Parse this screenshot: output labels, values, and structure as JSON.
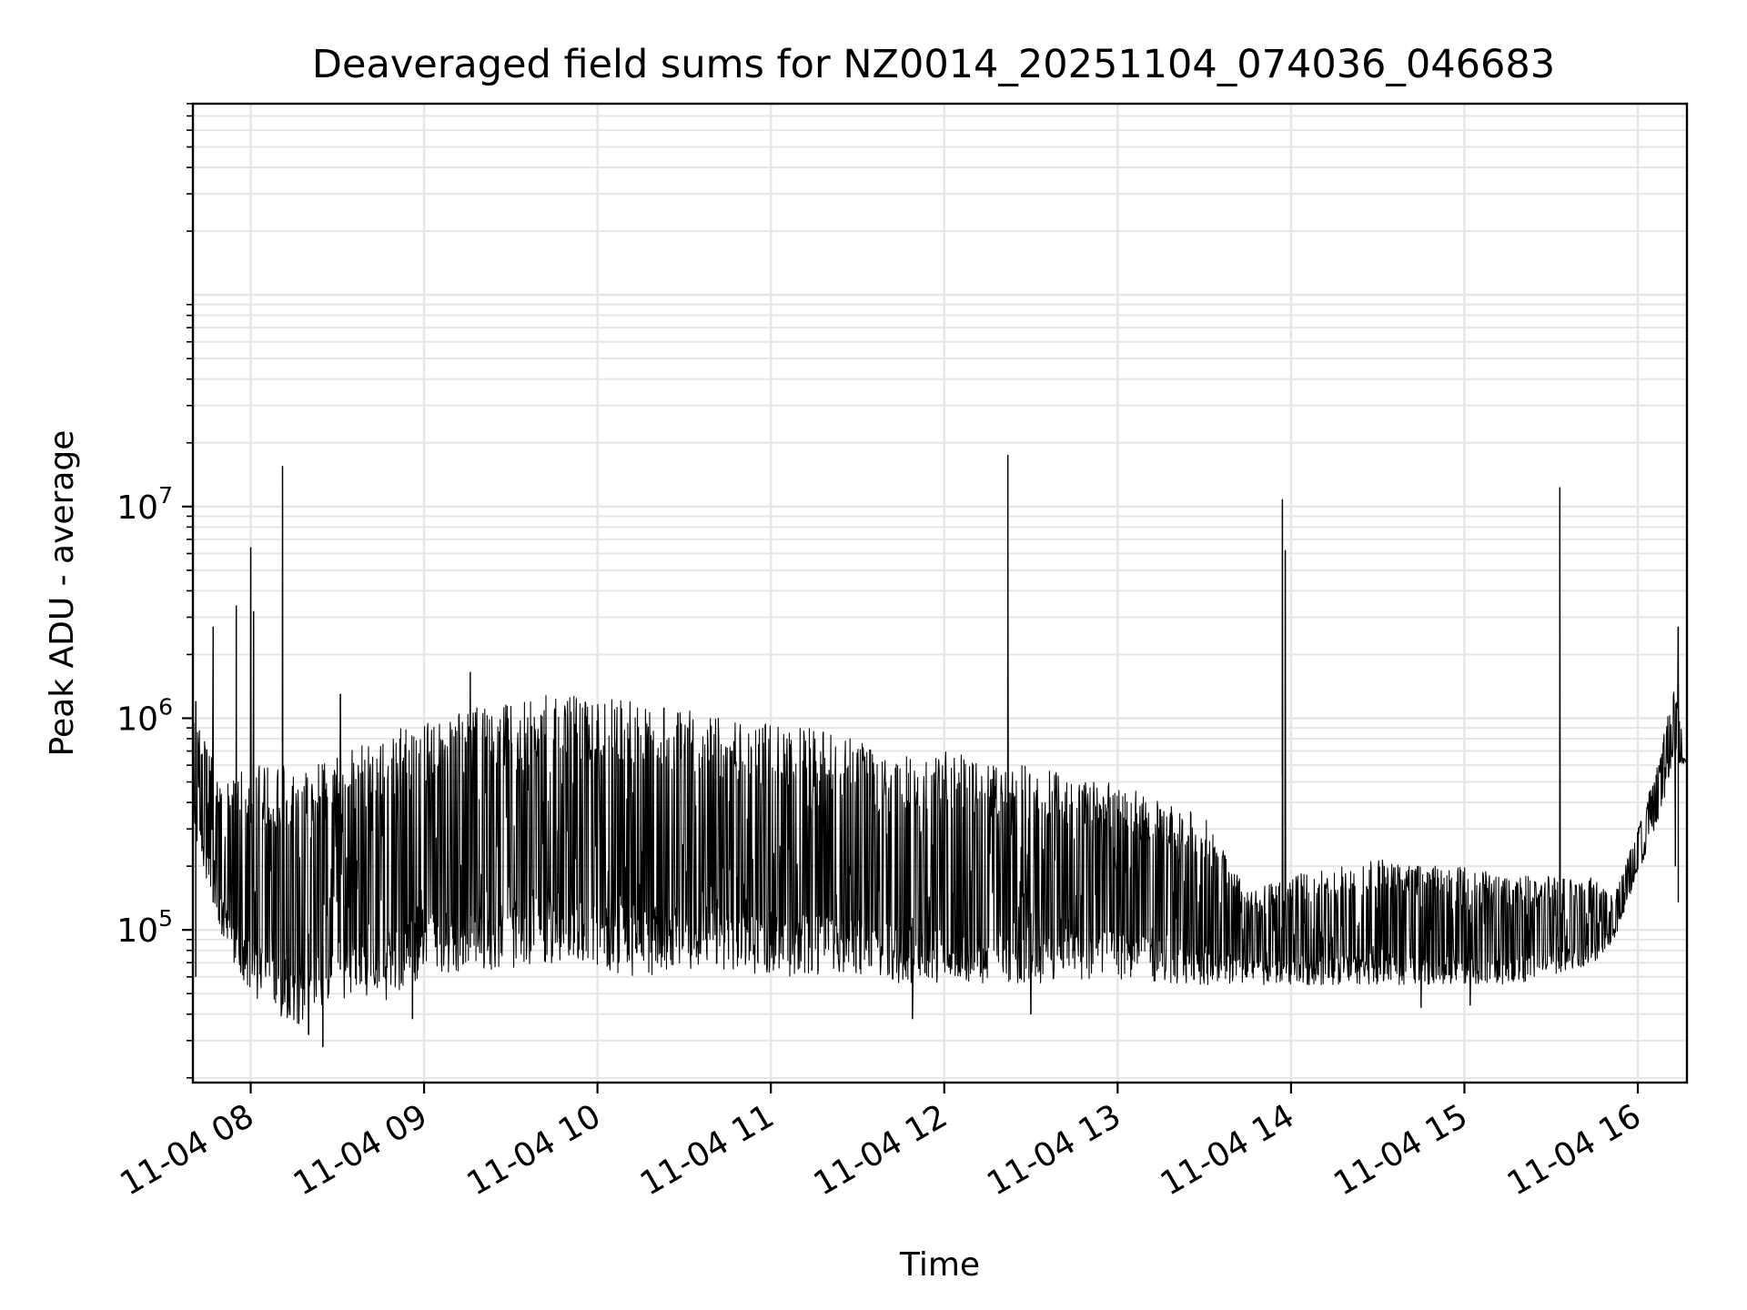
{
  "chart_data": {
    "type": "line",
    "title": "Deaveraged field sums for NZ0014_20251104_074036_046683",
    "xlabel": "Time",
    "ylabel": "Peak ADU - average",
    "yscale": "log",
    "ylim": [
      19000,
      800000000
    ],
    "xlim": [
      "2025-11-04 07:40",
      "2025-11-04 16:17"
    ],
    "grid": true,
    "line_color": "#000000",
    "grid_color": "#e6e6e6",
    "x_ticks": [
      {
        "t": "2025-11-04 08:00",
        "label": "11-04 08"
      },
      {
        "t": "2025-11-04 09:00",
        "label": "11-04 09"
      },
      {
        "t": "2025-11-04 10:00",
        "label": "11-04 10"
      },
      {
        "t": "2025-11-04 11:00",
        "label": "11-04 11"
      },
      {
        "t": "2025-11-04 12:00",
        "label": "11-04 12"
      },
      {
        "t": "2025-11-04 13:00",
        "label": "11-04 13"
      },
      {
        "t": "2025-11-04 14:00",
        "label": "11-04 14"
      },
      {
        "t": "2025-11-04 15:00",
        "label": "11-04 15"
      },
      {
        "t": "2025-11-04 16:00",
        "label": "11-04 16"
      }
    ],
    "y_ticks": [
      {
        "value": 100000,
        "base": "10",
        "exp": "5"
      },
      {
        "value": 1000000,
        "base": "10",
        "exp": "6"
      },
      {
        "value": 10000000,
        "base": "10",
        "exp": "7"
      }
    ],
    "series": [
      {
        "envelope": [
          {
            "t": "2025-11-04 07:40",
            "low": 300000,
            "high": 1100000
          },
          {
            "t": "2025-11-04 07:50",
            "low": 90000,
            "high": 500000
          },
          {
            "t": "2025-11-04 08:00",
            "low": 50000,
            "high": 600000
          },
          {
            "t": "2025-11-04 08:15",
            "low": 35000,
            "high": 600000
          },
          {
            "t": "2025-11-04 08:30",
            "low": 45000,
            "high": 650000
          },
          {
            "t": "2025-11-04 08:45",
            "low": 45000,
            "high": 850000
          },
          {
            "t": "2025-11-04 09:00",
            "low": 60000,
            "high": 950000
          },
          {
            "t": "2025-11-04 09:15",
            "low": 65000,
            "high": 1100000
          },
          {
            "t": "2025-11-04 09:30",
            "low": 65000,
            "high": 1200000
          },
          {
            "t": "2025-11-04 09:45",
            "low": 70000,
            "high": 1300000
          },
          {
            "t": "2025-11-04 10:00",
            "low": 65000,
            "high": 1250000
          },
          {
            "t": "2025-11-04 10:15",
            "low": 60000,
            "high": 1200000
          },
          {
            "t": "2025-11-04 10:30",
            "low": 65000,
            "high": 1100000
          },
          {
            "t": "2025-11-04 10:45",
            "low": 65000,
            "high": 1000000
          },
          {
            "t": "2025-11-04 11:00",
            "low": 60000,
            "high": 950000
          },
          {
            "t": "2025-11-04 11:15",
            "low": 60000,
            "high": 900000
          },
          {
            "t": "2025-11-04 11:30",
            "low": 60000,
            "high": 800000
          },
          {
            "t": "2025-11-04 11:45",
            "low": 55000,
            "high": 700000
          },
          {
            "t": "2025-11-04 12:00",
            "low": 55000,
            "high": 700000
          },
          {
            "t": "2025-11-04 12:15",
            "low": 55000,
            "high": 650000
          },
          {
            "t": "2025-11-04 12:30",
            "low": 55000,
            "high": 600000
          },
          {
            "t": "2025-11-04 12:45",
            "low": 58000,
            "high": 550000
          },
          {
            "t": "2025-11-04 13:00",
            "low": 58000,
            "high": 500000
          },
          {
            "t": "2025-11-04 13:15",
            "low": 55000,
            "high": 400000
          },
          {
            "t": "2025-11-04 13:30",
            "low": 55000,
            "high": 350000
          },
          {
            "t": "2025-11-04 13:45",
            "low": 55000,
            "high": 150000
          },
          {
            "t": "2025-11-04 14:00",
            "low": 55000,
            "high": 180000
          },
          {
            "t": "2025-11-04 14:15",
            "low": 55000,
            "high": 200000
          },
          {
            "t": "2025-11-04 14:30",
            "low": 55000,
            "high": 220000
          },
          {
            "t": "2025-11-04 14:45",
            "low": 55000,
            "high": 200000
          },
          {
            "t": "2025-11-04 15:00",
            "low": 55000,
            "high": 200000
          },
          {
            "t": "2025-11-04 15:15",
            "low": 55000,
            "high": 180000
          },
          {
            "t": "2025-11-04 15:30",
            "low": 60000,
            "high": 180000
          },
          {
            "t": "2025-11-04 15:45",
            "low": 70000,
            "high": 180000
          },
          {
            "t": "2025-11-04 15:52",
            "low": 90000,
            "high": 150000
          },
          {
            "t": "2025-11-04 16:00",
            "low": 180000,
            "high": 300000
          },
          {
            "t": "2025-11-04 16:08",
            "low": 350000,
            "high": 700000
          },
          {
            "t": "2025-11-04 16:12",
            "low": 600000,
            "high": 1500000
          },
          {
            "t": "2025-11-04 16:17",
            "low": 600000,
            "high": 800000
          }
        ],
        "spikes": [
          {
            "t": "2025-11-04 07:41",
            "value": 1200000
          },
          {
            "t": "2025-11-04 07:47",
            "value": 2700000
          },
          {
            "t": "2025-11-04 07:55",
            "value": 3400000
          },
          {
            "t": "2025-11-04 08:00",
            "value": 6400000
          },
          {
            "t": "2025-11-04 08:01",
            "value": 3200000
          },
          {
            "t": "2025-11-04 08:11",
            "value": 15500000
          },
          {
            "t": "2025-11-04 08:31",
            "value": 1300000
          },
          {
            "t": "2025-11-04 09:16",
            "value": 1650000
          },
          {
            "t": "2025-11-04 12:22",
            "value": 17500000
          },
          {
            "t": "2025-11-04 13:57",
            "value": 10800000
          },
          {
            "t": "2025-11-04 13:58",
            "value": 6200000
          },
          {
            "t": "2025-11-04 15:33",
            "value": 12300000
          },
          {
            "t": "2025-11-04 16:14",
            "value": 2700000
          }
        ],
        "dips": [
          {
            "t": "2025-11-04 08:25",
            "value": 28000
          },
          {
            "t": "2025-11-04 08:20",
            "value": 32000
          },
          {
            "t": "2025-11-04 08:56",
            "value": 38000
          },
          {
            "t": "2025-11-04 11:49",
            "value": 38000
          },
          {
            "t": "2025-11-04 12:30",
            "value": 40000
          },
          {
            "t": "2025-11-04 14:45",
            "value": 43000
          },
          {
            "t": "2025-11-04 15:02",
            "value": 44000
          },
          {
            "t": "2025-11-04 16:13",
            "value": 200000
          }
        ]
      }
    ]
  }
}
